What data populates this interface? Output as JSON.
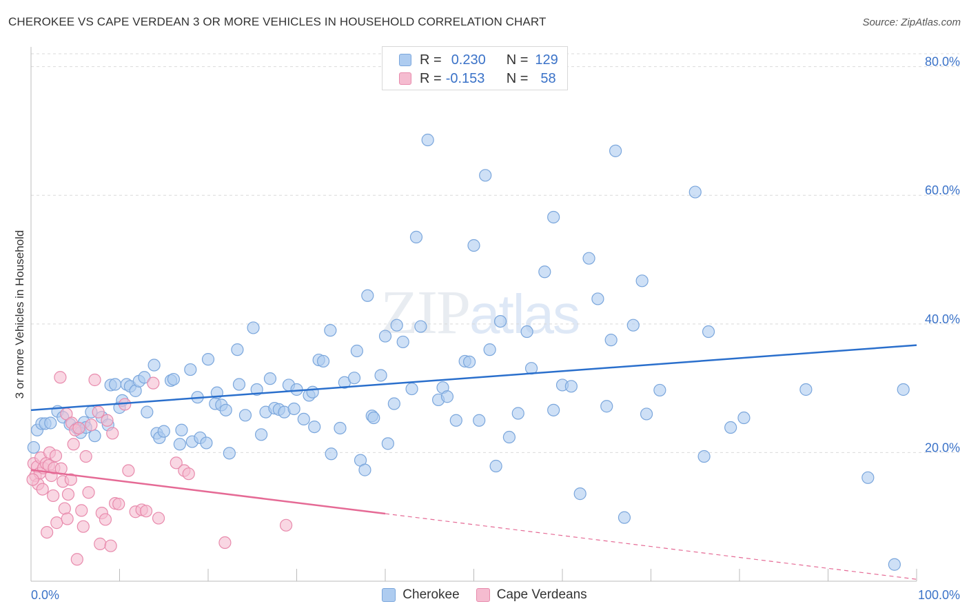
{
  "title": "CHEROKEE VS CAPE VERDEAN 3 OR MORE VEHICLES IN HOUSEHOLD CORRELATION CHART",
  "source": "Source: ZipAtlas.com",
  "watermark": {
    "zip": "ZIP",
    "atlas": "atlas"
  },
  "legend": [
    {
      "r_label": "R =",
      "r_value": "0.230",
      "n_label": "N =",
      "n_value": "129"
    },
    {
      "r_label": "R =",
      "r_value": "-0.153",
      "n_label": "N =",
      "n_value": "58"
    }
  ],
  "colors": {
    "cherokee_fill": "#aeccf0",
    "cherokee_stroke": "#7aa6dc",
    "cherokee_line": "#2a6fcc",
    "cape_fill": "#f5bcd0",
    "cape_stroke": "#e88aac",
    "cape_line": "#e56a95",
    "axis_label": "#3a72c8",
    "grid": "#d9d9d9"
  },
  "chart_data": {
    "type": "scatter",
    "title": "CHEROKEE VS CAPE VERDEAN 3 OR MORE VEHICLES IN HOUSEHOLD CORRELATION CHART",
    "xlabel": "",
    "ylabel": "3 or more Vehicles in Household",
    "xlim": [
      0,
      100
    ],
    "ylim": [
      0,
      82
    ],
    "x_tick_labels": [
      "0.0%",
      "100.0%"
    ],
    "y_ticks": [
      20,
      40,
      60,
      80
    ],
    "y_tick_labels": [
      "20.0%",
      "40.0%",
      "60.0%",
      "80.0%"
    ],
    "grid": true,
    "legend_position": "bottom",
    "series": [
      {
        "name": "Cherokee",
        "r": 0.23,
        "n": 129,
        "trend": {
          "x": [
            0,
            100
          ],
          "y": [
            26.6,
            36.7
          ],
          "dashed_from": null
        },
        "points": [
          [
            0.7,
            23.5
          ],
          [
            1.2,
            24.5
          ],
          [
            1.6,
            24.5
          ],
          [
            2.2,
            24.6
          ],
          [
            3.0,
            26.4
          ],
          [
            3.6,
            25.5
          ],
          [
            4.4,
            24.4
          ],
          [
            5.2,
            23.8
          ],
          [
            5.6,
            23.1
          ],
          [
            6.0,
            24.7
          ],
          [
            6.2,
            23.9
          ],
          [
            6.8,
            26.3
          ],
          [
            7.2,
            22.6
          ],
          [
            8.0,
            25.5
          ],
          [
            8.7,
            24.3
          ],
          [
            9.0,
            30.5
          ],
          [
            9.5,
            30.6
          ],
          [
            10.0,
            27.0
          ],
          [
            10.3,
            28.1
          ],
          [
            10.8,
            30.6
          ],
          [
            11.2,
            30.3
          ],
          [
            11.8,
            29.6
          ],
          [
            12.2,
            31.1
          ],
          [
            12.8,
            31.7
          ],
          [
            13.1,
            26.3
          ],
          [
            13.9,
            33.6
          ],
          [
            14.2,
            23.0
          ],
          [
            14.5,
            22.3
          ],
          [
            15.0,
            23.3
          ],
          [
            15.8,
            31.2
          ],
          [
            16.1,
            31.4
          ],
          [
            16.8,
            21.3
          ],
          [
            17.0,
            23.5
          ],
          [
            18.0,
            32.9
          ],
          [
            18.2,
            21.7
          ],
          [
            18.8,
            28.6
          ],
          [
            19.1,
            22.3
          ],
          [
            19.8,
            21.5
          ],
          [
            20.0,
            34.5
          ],
          [
            20.8,
            27.6
          ],
          [
            21.0,
            29.3
          ],
          [
            21.5,
            27.4
          ],
          [
            22.0,
            26.6
          ],
          [
            22.4,
            19.9
          ],
          [
            23.3,
            36.0
          ],
          [
            23.5,
            30.6
          ],
          [
            24.2,
            25.8
          ],
          [
            25.1,
            39.4
          ],
          [
            25.5,
            29.8
          ],
          [
            26.0,
            22.8
          ],
          [
            26.5,
            26.3
          ],
          [
            27.0,
            31.5
          ],
          [
            27.5,
            26.9
          ],
          [
            28.0,
            26.7
          ],
          [
            28.6,
            26.3
          ],
          [
            29.1,
            30.5
          ],
          [
            29.7,
            26.8
          ],
          [
            30.0,
            29.8
          ],
          [
            30.8,
            25.2
          ],
          [
            31.4,
            28.9
          ],
          [
            31.8,
            29.4
          ],
          [
            32.0,
            24.0
          ],
          [
            32.5,
            34.4
          ],
          [
            33.0,
            34.2
          ],
          [
            33.8,
            39.0
          ],
          [
            33.9,
            19.8
          ],
          [
            34.9,
            23.8
          ],
          [
            35.4,
            30.9
          ],
          [
            36.5,
            31.6
          ],
          [
            36.8,
            35.8
          ],
          [
            37.2,
            18.8
          ],
          [
            37.7,
            17.3
          ],
          [
            38.0,
            44.4
          ],
          [
            38.5,
            25.7
          ],
          [
            38.7,
            25.4
          ],
          [
            39.5,
            32.0
          ],
          [
            40.0,
            38.1
          ],
          [
            40.3,
            21.4
          ],
          [
            41.0,
            27.6
          ],
          [
            41.3,
            39.8
          ],
          [
            42.0,
            37.2
          ],
          [
            43.0,
            29.9
          ],
          [
            43.5,
            53.5
          ],
          [
            44.0,
            39.6
          ],
          [
            44.8,
            68.6
          ],
          [
            46.0,
            28.2
          ],
          [
            46.5,
            30.1
          ],
          [
            47.0,
            28.7
          ],
          [
            48.0,
            25.0
          ],
          [
            49.0,
            34.2
          ],
          [
            49.5,
            34.1
          ],
          [
            50.0,
            52.2
          ],
          [
            50.6,
            25.0
          ],
          [
            51.3,
            63.1
          ],
          [
            51.8,
            36.0
          ],
          [
            52.5,
            17.9
          ],
          [
            53.0,
            40.4
          ],
          [
            54.0,
            22.4
          ],
          [
            55.0,
            26.1
          ],
          [
            56.0,
            38.8
          ],
          [
            56.5,
            33.1
          ],
          [
            58.0,
            48.1
          ],
          [
            59.0,
            56.6
          ],
          [
            59.0,
            26.6
          ],
          [
            60.0,
            30.5
          ],
          [
            61.0,
            30.3
          ],
          [
            62.0,
            13.6
          ],
          [
            63.0,
            50.2
          ],
          [
            64.0,
            43.9
          ],
          [
            65.0,
            27.2
          ],
          [
            65.5,
            37.5
          ],
          [
            66.0,
            66.9
          ],
          [
            67.0,
            9.9
          ],
          [
            68.0,
            39.8
          ],
          [
            69.0,
            46.7
          ],
          [
            69.5,
            26.0
          ],
          [
            71.0,
            29.7
          ],
          [
            75.0,
            60.5
          ],
          [
            76.0,
            19.4
          ],
          [
            76.5,
            38.8
          ],
          [
            79.0,
            23.9
          ],
          [
            80.5,
            25.4
          ],
          [
            87.5,
            29.8
          ],
          [
            94.5,
            16.1
          ],
          [
            97.5,
            2.6
          ],
          [
            98.5,
            29.8
          ],
          [
            0.3,
            20.8
          ]
        ]
      },
      {
        "name": "Cape Verdeans",
        "r": -0.153,
        "n": 58,
        "trend": {
          "x": [
            0,
            100
          ],
          "y": [
            17.3,
            0.3
          ],
          "dashed_from": 40
        },
        "points": [
          [
            0.3,
            18.3
          ],
          [
            0.5,
            16.4
          ],
          [
            0.7,
            17.8
          ],
          [
            0.8,
            15.1
          ],
          [
            1.0,
            16.8
          ],
          [
            1.1,
            19.2
          ],
          [
            1.3,
            14.3
          ],
          [
            1.4,
            17.6
          ],
          [
            1.7,
            18.3
          ],
          [
            1.8,
            7.6
          ],
          [
            2.0,
            18.0
          ],
          [
            2.1,
            20.0
          ],
          [
            2.3,
            16.4
          ],
          [
            2.5,
            13.3
          ],
          [
            2.6,
            17.6
          ],
          [
            2.8,
            19.5
          ],
          [
            2.9,
            9.1
          ],
          [
            3.3,
            31.7
          ],
          [
            3.4,
            17.5
          ],
          [
            3.6,
            15.5
          ],
          [
            3.8,
            11.3
          ],
          [
            4.0,
            26.0
          ],
          [
            4.1,
            9.7
          ],
          [
            4.2,
            13.5
          ],
          [
            4.5,
            15.8
          ],
          [
            4.6,
            24.6
          ],
          [
            4.8,
            21.3
          ],
          [
            5.0,
            23.5
          ],
          [
            5.2,
            3.4
          ],
          [
            5.4,
            23.8
          ],
          [
            5.7,
            11.0
          ],
          [
            5.9,
            8.5
          ],
          [
            6.2,
            19.4
          ],
          [
            6.5,
            13.8
          ],
          [
            6.8,
            24.3
          ],
          [
            7.2,
            31.3
          ],
          [
            7.6,
            26.3
          ],
          [
            7.8,
            5.8
          ],
          [
            8.0,
            10.6
          ],
          [
            8.4,
            9.6
          ],
          [
            8.6,
            25.0
          ],
          [
            9.0,
            5.5
          ],
          [
            9.2,
            23.0
          ],
          [
            9.5,
            12.1
          ],
          [
            9.9,
            12.0
          ],
          [
            10.6,
            27.5
          ],
          [
            11.0,
            17.2
          ],
          [
            11.8,
            10.8
          ],
          [
            12.5,
            11.1
          ],
          [
            13.0,
            10.9
          ],
          [
            13.8,
            30.8
          ],
          [
            14.4,
            9.8
          ],
          [
            16.4,
            18.4
          ],
          [
            17.3,
            17.2
          ],
          [
            17.8,
            16.7
          ],
          [
            21.9,
            6.0
          ],
          [
            28.8,
            8.7
          ],
          [
            0.2,
            15.8
          ]
        ]
      }
    ]
  },
  "bottom_legend": [
    "Cherokee",
    "Cape Verdeans"
  ]
}
